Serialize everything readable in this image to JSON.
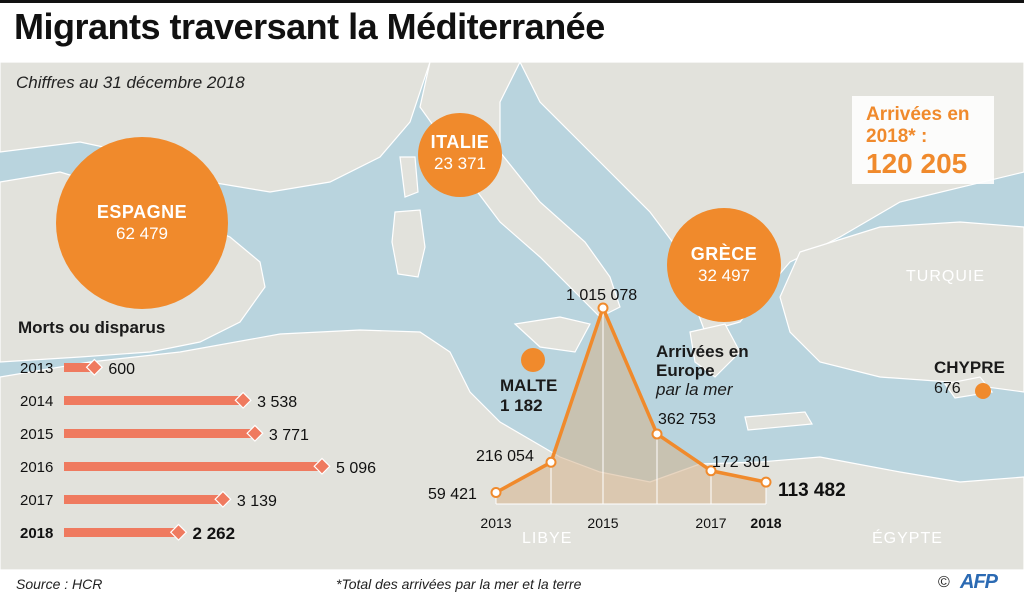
{
  "header": {
    "title": "Migrants traversant la Méditerranée",
    "subtitle": "Chiffres au 31 décembre 2018"
  },
  "arrivals_box": {
    "label": "Arrivées en 2018* :",
    "value": "120 205"
  },
  "bubbles": [
    {
      "name": "ESPAGNE",
      "value_label": "62 479",
      "value": 62479
    },
    {
      "name": "ITALIE",
      "value_label": "23 371",
      "value": 23371
    },
    {
      "name": "GRÈCE",
      "value_label": "32 497",
      "value": 32497
    },
    {
      "name": "MALTE",
      "value_label": "1 182",
      "value": 1182
    },
    {
      "name": "CHYPRE",
      "value_label": "676",
      "value": 676
    }
  ],
  "map_labels": {
    "turquie": "TURQUIE",
    "libye": "LIBYE",
    "egypte": "ÉGYPTE"
  },
  "footer": {
    "source": "Source : HCR",
    "note": "*Total des arrivées par la mer et la terre",
    "copyright": "©",
    "agency": "AFP"
  },
  "colors": {
    "accent": "#f08a2c",
    "bar": "#ef7a5f",
    "sea": "#b9d4de",
    "land": "#e2e2dc"
  },
  "chart_data": [
    {
      "type": "bar",
      "orientation": "horizontal",
      "title": "Morts ou disparus",
      "categories": [
        "2013",
        "2014",
        "2015",
        "2016",
        "2017",
        "2018"
      ],
      "values": [
        600,
        3538,
        3771,
        5096,
        3139,
        2262
      ],
      "value_labels": [
        "600",
        "3 538",
        "3 771",
        "5 096",
        "3 139",
        "2 262"
      ],
      "highlight": "2018"
    },
    {
      "type": "area",
      "title": "Arrivées en Europe",
      "subtitle": "par la mer",
      "x": [
        "2013",
        "2014",
        "2015",
        "2016",
        "2017",
        "2018"
      ],
      "x_tick_labels": [
        "2013",
        "2015",
        "2017",
        "2018"
      ],
      "values": [
        59421,
        216054,
        1015078,
        362753,
        172301,
        113482
      ],
      "value_labels": [
        "59 421",
        "216 054",
        "1 015 078",
        "362 753",
        "172 301",
        "113 482"
      ],
      "highlight": "2018"
    }
  ]
}
